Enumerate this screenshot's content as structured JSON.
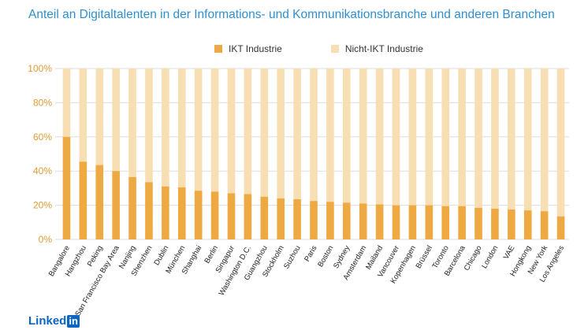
{
  "title": "Anteil an Digitaltalenten in der Informations- und Kommunikationsbranche und anderen Branchen",
  "logo": {
    "text": "Linked",
    "badge": "in"
  },
  "colors": {
    "ikt": "#efa942",
    "nicht_ikt": "#f8dfb3",
    "axis_text": "#e29a35",
    "grid": "#dddddd"
  },
  "chart_data": {
    "type": "bar",
    "stacked": true,
    "categories": [
      "Bangalore",
      "Hangzhou",
      "Peking",
      "San Francisco Bay Area",
      "Nanjing",
      "Shenzhen",
      "Dublin",
      "München",
      "Shanghai",
      "Berlin",
      "Singapur",
      "Washington D.C.",
      "Guangzhou",
      "Stockholm",
      "Suzhou",
      "Paris",
      "Boston",
      "Sydney",
      "Amsterdam",
      "Mailand",
      "Vancouver",
      "Kopenhagen",
      "Brüssel",
      "Toronto",
      "Barcelona",
      "Chicago",
      "London",
      "VAE",
      "Hongkong",
      "New York",
      "Los Angeles"
    ],
    "series": [
      {
        "name": "IKT Industrie",
        "values": [
          60,
          45.5,
          43.5,
          40,
          36.5,
          33.5,
          31,
          30.5,
          28.5,
          28,
          27,
          26.5,
          25,
          24,
          23.5,
          22.5,
          22,
          21.5,
          21,
          20.5,
          20,
          20,
          20,
          19.5,
          19.5,
          18.5,
          18,
          17.5,
          17,
          16.5,
          13.5
        ]
      },
      {
        "name": "Nicht-IKT Industrie",
        "values": [
          40,
          54.5,
          56.5,
          60,
          63.5,
          66.5,
          69,
          69.5,
          71.5,
          72,
          73,
          73.5,
          75,
          76,
          76.5,
          77.5,
          78,
          78.5,
          79,
          79.5,
          80,
          80,
          80,
          80.5,
          80.5,
          81.5,
          82,
          82.5,
          83,
          83.5,
          86.5
        ]
      }
    ],
    "yticks": [
      "0%",
      "20%",
      "40%",
      "60%",
      "80%",
      "100%"
    ],
    "ylim": [
      0,
      100
    ],
    "legend_position": "top-center",
    "grid": true
  }
}
